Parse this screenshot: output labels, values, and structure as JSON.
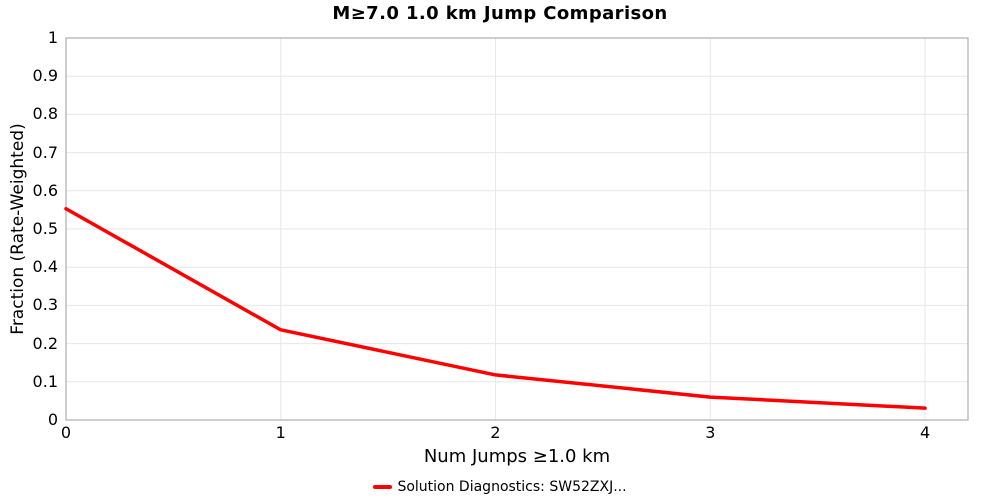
{
  "chart_data": {
    "type": "line",
    "title": "M≥7.0 1.0 km Jump Comparison",
    "xlabel": "Num Jumps ≥1.0 km",
    "ylabel": "Fraction (Rate-Weighted)",
    "xlim": [
      0,
      4.2
    ],
    "ylim": [
      0,
      1
    ],
    "xtick_values": [
      0,
      1,
      2,
      3,
      4
    ],
    "xtick_labels": [
      "0",
      "1",
      "2",
      "3",
      "4"
    ],
    "ytick_values": [
      0,
      0.1,
      0.2,
      0.3,
      0.4,
      0.5,
      0.6,
      0.7,
      0.8,
      0.9,
      1
    ],
    "ytick_labels": [
      "0",
      "0.1",
      "0.2",
      "0.3",
      "0.4",
      "0.5",
      "0.6",
      "0.7",
      "0.8",
      "0.9",
      "1"
    ],
    "grid": true,
    "legend_position": "bottom-center",
    "series": [
      {
        "name": "Solution Diagnostics: SW52ZXJ...",
        "color": "#ff0000",
        "x": [
          0,
          1,
          2,
          3,
          4
        ],
        "y": [
          0.553,
          0.236,
          0.118,
          0.06,
          0.031
        ]
      }
    ],
    "colors": {
      "background": "#ffffff",
      "grid": "#e7e7e7",
      "axis_border": "#adadad",
      "text": "#000000"
    }
  }
}
